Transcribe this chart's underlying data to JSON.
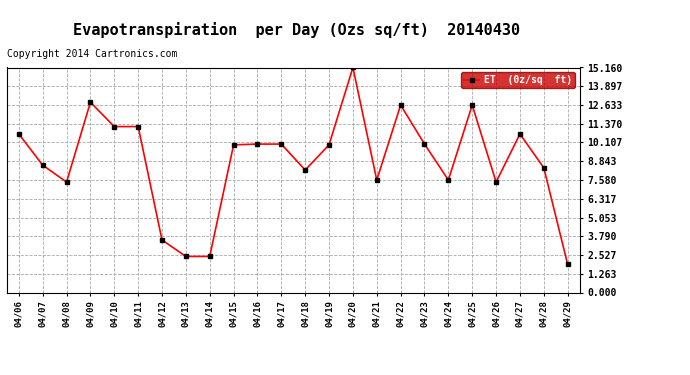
{
  "title": "Evapotranspiration  per Day (Ozs sq/ft)  20140430",
  "copyright": "Copyright 2014 Cartronics.com",
  "legend_label": "ET  (0z/sq  ft)",
  "x_labels": [
    "04/06",
    "04/07",
    "04/08",
    "04/09",
    "04/10",
    "04/11",
    "04/12",
    "04/13",
    "04/14",
    "04/15",
    "04/16",
    "04/17",
    "04/18",
    "04/19",
    "04/20",
    "04/21",
    "04/22",
    "04/23",
    "04/24",
    "04/25",
    "04/26",
    "04/27",
    "04/28",
    "04/29"
  ],
  "y_values": [
    10.68,
    8.58,
    7.44,
    12.82,
    11.18,
    11.18,
    3.54,
    2.43,
    2.43,
    9.95,
    10.0,
    10.0,
    8.25,
    9.95,
    15.16,
    7.58,
    12.63,
    10.0,
    7.58,
    12.63,
    7.44,
    10.68,
    8.4,
    1.89
  ],
  "y_min": 0.0,
  "y_max": 15.16,
  "y_ticks": [
    0.0,
    1.263,
    2.527,
    3.79,
    5.053,
    6.317,
    7.58,
    8.843,
    10.107,
    11.37,
    12.633,
    13.897,
    15.16
  ],
  "line_color": "#ff0000",
  "marker_color": "#000000",
  "bg_color": "#ffffff",
  "grid_color": "#aaaaaa",
  "title_fontsize": 11,
  "copyright_fontsize": 7,
  "legend_bg": "#cc0000",
  "legend_text_color": "#ffffff"
}
